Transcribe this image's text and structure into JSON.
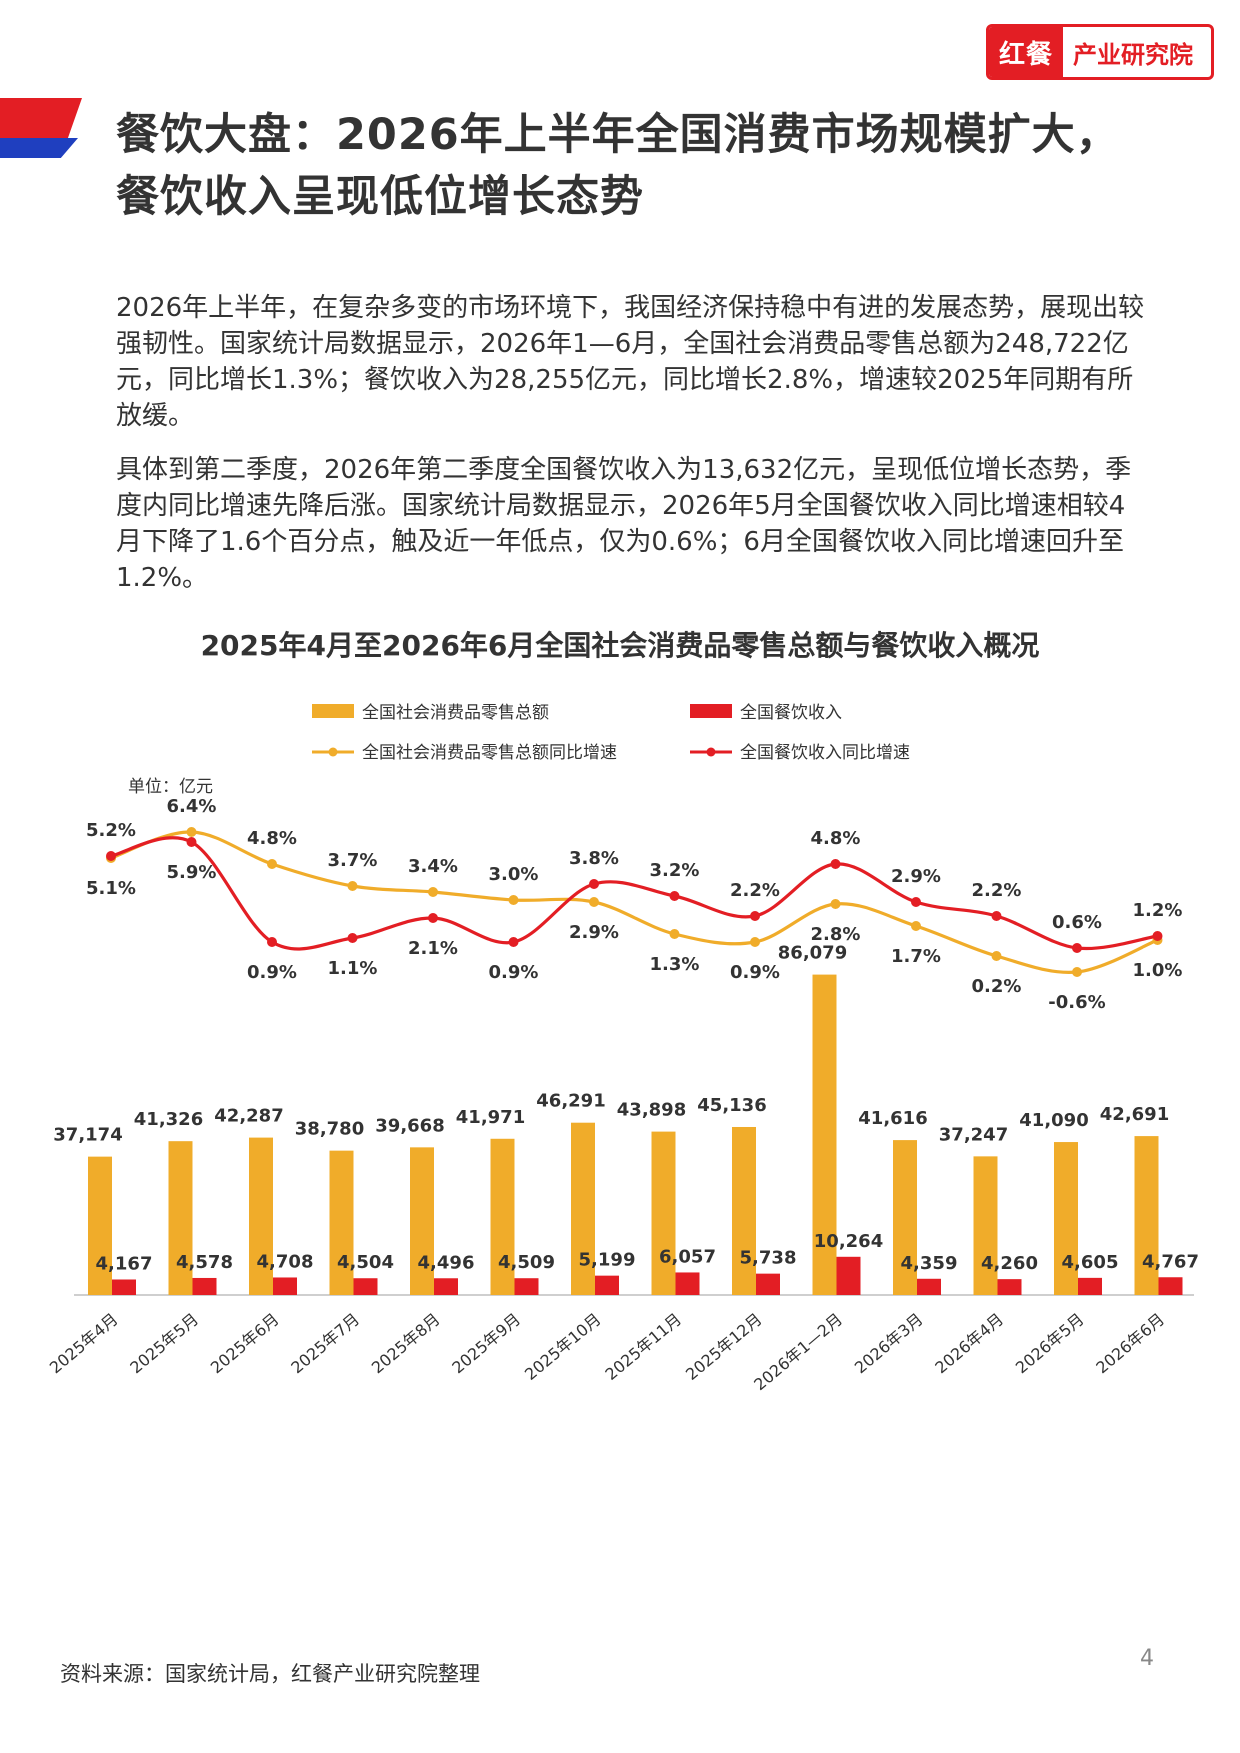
{
  "logo": {
    "mark": "红餐",
    "text": "产业研究院"
  },
  "header": {
    "title": "餐饮大盘：2026年上半年全国消费市场规模扩大，餐饮收入呈现低位增长态势"
  },
  "body": {
    "p1": "2026年上半年，在复杂多变的市场环境下，我国经济保持稳中有进的发展态势，展现出较强韧性。国家统计局数据显示，2026年1—6月，全国社会消费品零售总额为248,722亿元，同比增长1.3%；餐饮收入为28,255亿元，同比增长2.8%，增速较2025年同期有所放缓。",
    "p2": "具体到第二季度，2026年第二季度全国餐饮收入为13,632亿元，呈现低位增长态势，季度内同比增速先降后涨。国家统计局数据显示，2026年5月全国餐饮收入同比增速相较4月下降了1.6个百分点，触及近一年低点，仅为0.6%；6月全国餐饮收入同比增速回升至1.2%。"
  },
  "colors": {
    "retail": "#F0AC2A",
    "catering": "#E31E24",
    "text": "#333333",
    "axis": "#BFBFBF"
  },
  "chart_data": {
    "type": "bar",
    "title": "2025年4月至2026年6月全国社会消费品零售总额与餐饮收入概况",
    "unit_label": "单位：亿元",
    "categories": [
      "2025年4月",
      "2025年5月",
      "2025年6月",
      "2025年7月",
      "2025年8月",
      "2025年9月",
      "2025年10月",
      "2025年11月",
      "2025年12月",
      "2026年1—2月",
      "2026年3月",
      "2026年4月",
      "2026年5月",
      "2026年6月"
    ],
    "bar_series": [
      {
        "name": "全国社会消费品零售总额",
        "color": "#F0AC2A",
        "values": [
          37174,
          41326,
          42287,
          38780,
          39668,
          41971,
          46291,
          43898,
          45136,
          86079,
          41616,
          37247,
          41090,
          42691
        ]
      },
      {
        "name": "全国餐饮收入",
        "color": "#E31E24",
        "values": [
          4167,
          4578,
          4708,
          4504,
          4496,
          4509,
          5199,
          6057,
          5738,
          10264,
          4359,
          4260,
          4605,
          4767
        ]
      }
    ],
    "bar_labels": [
      [
        "37,174",
        "41,326",
        "42,287",
        "38,780",
        "39,668",
        "41,971",
        "46,291",
        "43,898",
        "45,136",
        "86,079",
        "41,616",
        "37,247",
        "41,090",
        "42,691"
      ],
      [
        "4,167",
        "4,578",
        "4,708",
        "4,504",
        "4,496",
        "4,509",
        "5,199",
        "6,057",
        "5,738",
        "10,264",
        "4,359",
        "4,260",
        "4,605",
        "4,767"
      ]
    ],
    "line_series": [
      {
        "name": "全国社会消费品零售总额同比增速",
        "color": "#F0AC2A",
        "values": [
          5.1,
          6.4,
          4.8,
          3.7,
          3.4,
          3.0,
          2.9,
          1.3,
          0.9,
          2.8,
          1.7,
          0.2,
          -0.6,
          1.0
        ]
      },
      {
        "name": "全国餐饮收入同比增速",
        "color": "#E31E24",
        "values": [
          5.2,
          5.9,
          0.9,
          1.1,
          2.1,
          0.9,
          3.8,
          3.2,
          2.2,
          4.8,
          2.9,
          2.2,
          0.6,
          1.2
        ]
      }
    ],
    "line_labels": [
      [
        "5.1%",
        "6.4%",
        "4.8%",
        "3.7%",
        "3.4%",
        "3.0%",
        "2.9%",
        "1.3%",
        "0.9%",
        "2.8%",
        "1.7%",
        "0.2%",
        "-0.6%",
        "1.0%"
      ],
      [
        "5.2%",
        "5.9%",
        "0.9%",
        "1.1%",
        "2.1%",
        "0.9%",
        "3.8%",
        "3.2%",
        "2.2%",
        "4.8%",
        "2.9%",
        "2.2%",
        "0.6%",
        "1.2%"
      ]
    ],
    "legend_position": "top",
    "ylim_bars": [
      0,
      90000
    ],
    "ylim_lines": [
      -1,
      7
    ]
  },
  "footer": {
    "source": "资料来源：国家统计局，红餐产业研究院整理",
    "page": "4"
  }
}
